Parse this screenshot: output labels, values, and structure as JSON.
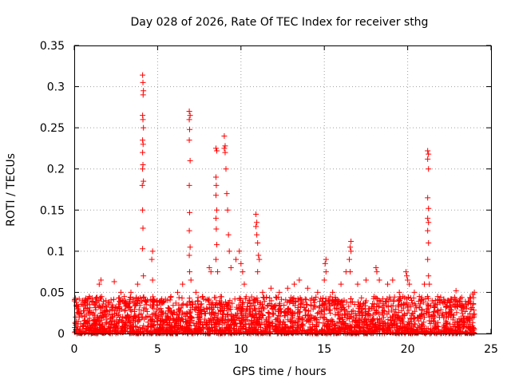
{
  "chart_data": {
    "type": "scatter",
    "title": "Day 028 of 2026, Rate Of TEC Index for receiver sthg",
    "xlabel": "GPS time / hours",
    "ylabel": "ROTI / TECUs",
    "xlim": [
      0,
      25
    ],
    "ylim": [
      0,
      0.35
    ],
    "xticks": [
      0,
      5,
      10,
      15,
      20,
      25
    ],
    "yticks": [
      0,
      0.05,
      0.1,
      0.15,
      0.2,
      0.25,
      0.3,
      0.35
    ],
    "xtick_labels": [
      "0",
      "5",
      "10",
      "15",
      "20",
      "25"
    ],
    "ytick_labels": [
      "0",
      "0.05",
      "0.1",
      "0.15",
      "0.2",
      "0.25",
      "0.3",
      "0.35"
    ],
    "grid": true,
    "marker": "+",
    "color": "#ff0000",
    "series": [
      {
        "name": "ROTI",
        "points": [
          [
            0.1,
            0.01
          ],
          [
            0.2,
            0.03
          ],
          [
            0.3,
            0.02
          ],
          [
            0.5,
            0.04
          ],
          [
            0.8,
            0.03
          ],
          [
            0.9,
            0.045
          ],
          [
            1.2,
            0.035
          ],
          [
            1.5,
            0.06
          ],
          [
            1.6,
            0.065
          ],
          [
            1.9,
            0.04
          ],
          [
            2.4,
            0.063
          ],
          [
            2.8,
            0.05
          ],
          [
            3.0,
            0.045
          ],
          [
            3.4,
            0.05
          ],
          [
            3.8,
            0.06
          ],
          [
            4.1,
            0.314
          ],
          [
            4.12,
            0.305
          ],
          [
            4.15,
            0.295
          ],
          [
            4.13,
            0.29
          ],
          [
            4.1,
            0.265
          ],
          [
            4.12,
            0.26
          ],
          [
            4.15,
            0.25
          ],
          [
            4.1,
            0.235
          ],
          [
            4.13,
            0.23
          ],
          [
            4.1,
            0.22
          ],
          [
            4.12,
            0.205
          ],
          [
            4.1,
            0.2
          ],
          [
            4.15,
            0.185
          ],
          [
            4.08,
            0.18
          ],
          [
            4.1,
            0.15
          ],
          [
            4.12,
            0.128
          ],
          [
            4.1,
            0.103
          ],
          [
            4.15,
            0.07
          ],
          [
            4.7,
            0.1
          ],
          [
            4.65,
            0.09
          ],
          [
            4.7,
            0.065
          ],
          [
            5.2,
            0.04
          ],
          [
            5.8,
            0.045
          ],
          [
            6.2,
            0.05
          ],
          [
            6.5,
            0.06
          ],
          [
            6.9,
            0.27
          ],
          [
            6.95,
            0.265
          ],
          [
            6.9,
            0.26
          ],
          [
            6.92,
            0.248
          ],
          [
            6.9,
            0.235
          ],
          [
            6.95,
            0.21
          ],
          [
            6.9,
            0.18
          ],
          [
            6.92,
            0.147
          ],
          [
            6.9,
            0.125
          ],
          [
            6.95,
            0.105
          ],
          [
            6.9,
            0.095
          ],
          [
            6.92,
            0.075
          ],
          [
            7.0,
            0.065
          ],
          [
            7.3,
            0.05
          ],
          [
            7.7,
            0.045
          ],
          [
            8.1,
            0.08
          ],
          [
            8.2,
            0.075
          ],
          [
            8.5,
            0.225
          ],
          [
            8.55,
            0.222
          ],
          [
            8.5,
            0.19
          ],
          [
            8.52,
            0.18
          ],
          [
            8.5,
            0.168
          ],
          [
            8.55,
            0.15
          ],
          [
            8.5,
            0.14
          ],
          [
            8.52,
            0.127
          ],
          [
            8.55,
            0.108
          ],
          [
            8.5,
            0.09
          ],
          [
            8.6,
            0.075
          ],
          [
            9.0,
            0.24
          ],
          [
            9.05,
            0.228
          ],
          [
            9.0,
            0.225
          ],
          [
            9.05,
            0.22
          ],
          [
            9.1,
            0.2
          ],
          [
            9.15,
            0.17
          ],
          [
            9.2,
            0.15
          ],
          [
            9.25,
            0.12
          ],
          [
            9.3,
            0.1
          ],
          [
            9.4,
            0.08
          ],
          [
            9.7,
            0.09
          ],
          [
            9.9,
            0.1
          ],
          [
            10.0,
            0.085
          ],
          [
            10.1,
            0.075
          ],
          [
            10.2,
            0.06
          ],
          [
            10.9,
            0.145
          ],
          [
            10.95,
            0.135
          ],
          [
            10.9,
            0.13
          ],
          [
            10.95,
            0.12
          ],
          [
            11.0,
            0.11
          ],
          [
            11.05,
            0.095
          ],
          [
            11.1,
            0.09
          ],
          [
            11.0,
            0.075
          ],
          [
            11.3,
            0.05
          ],
          [
            11.8,
            0.055
          ],
          [
            12.3,
            0.05
          ],
          [
            12.8,
            0.055
          ],
          [
            13.2,
            0.06
          ],
          [
            13.5,
            0.065
          ],
          [
            14.0,
            0.055
          ],
          [
            14.6,
            0.05
          ],
          [
            15.1,
            0.09
          ],
          [
            15.05,
            0.085
          ],
          [
            15.1,
            0.075
          ],
          [
            15.0,
            0.065
          ],
          [
            15.5,
            0.05
          ],
          [
            16.0,
            0.06
          ],
          [
            16.3,
            0.075
          ],
          [
            16.6,
            0.112
          ],
          [
            16.55,
            0.105
          ],
          [
            16.6,
            0.1
          ],
          [
            16.5,
            0.09
          ],
          [
            16.55,
            0.075
          ],
          [
            17.0,
            0.06
          ],
          [
            17.5,
            0.065
          ],
          [
            18.1,
            0.08
          ],
          [
            18.15,
            0.075
          ],
          [
            18.3,
            0.065
          ],
          [
            18.8,
            0.06
          ],
          [
            19.1,
            0.065
          ],
          [
            19.5,
            0.05
          ],
          [
            19.9,
            0.075
          ],
          [
            19.95,
            0.07
          ],
          [
            20.0,
            0.065
          ],
          [
            20.1,
            0.06
          ],
          [
            20.4,
            0.05
          ],
          [
            20.7,
            0.045
          ],
          [
            21.0,
            0.06
          ],
          [
            21.2,
            0.222
          ],
          [
            21.25,
            0.218
          ],
          [
            21.2,
            0.212
          ],
          [
            21.25,
            0.2
          ],
          [
            21.2,
            0.165
          ],
          [
            21.25,
            0.152
          ],
          [
            21.2,
            0.14
          ],
          [
            21.25,
            0.135
          ],
          [
            21.2,
            0.125
          ],
          [
            21.25,
            0.11
          ],
          [
            21.2,
            0.09
          ],
          [
            21.25,
            0.07
          ],
          [
            21.3,
            0.06
          ],
          [
            21.8,
            0.045
          ],
          [
            22.4,
            0.04
          ],
          [
            22.9,
            0.052
          ],
          [
            23.5,
            0.035
          ],
          [
            23.9,
            0.048
          ],
          [
            24.0,
            0.05
          ]
        ],
        "baseline_band": {
          "description": "dense cloud of low ROTI values across the full day",
          "x_range": [
            0,
            24
          ],
          "y_range": [
            0,
            0.045
          ]
        }
      }
    ]
  }
}
